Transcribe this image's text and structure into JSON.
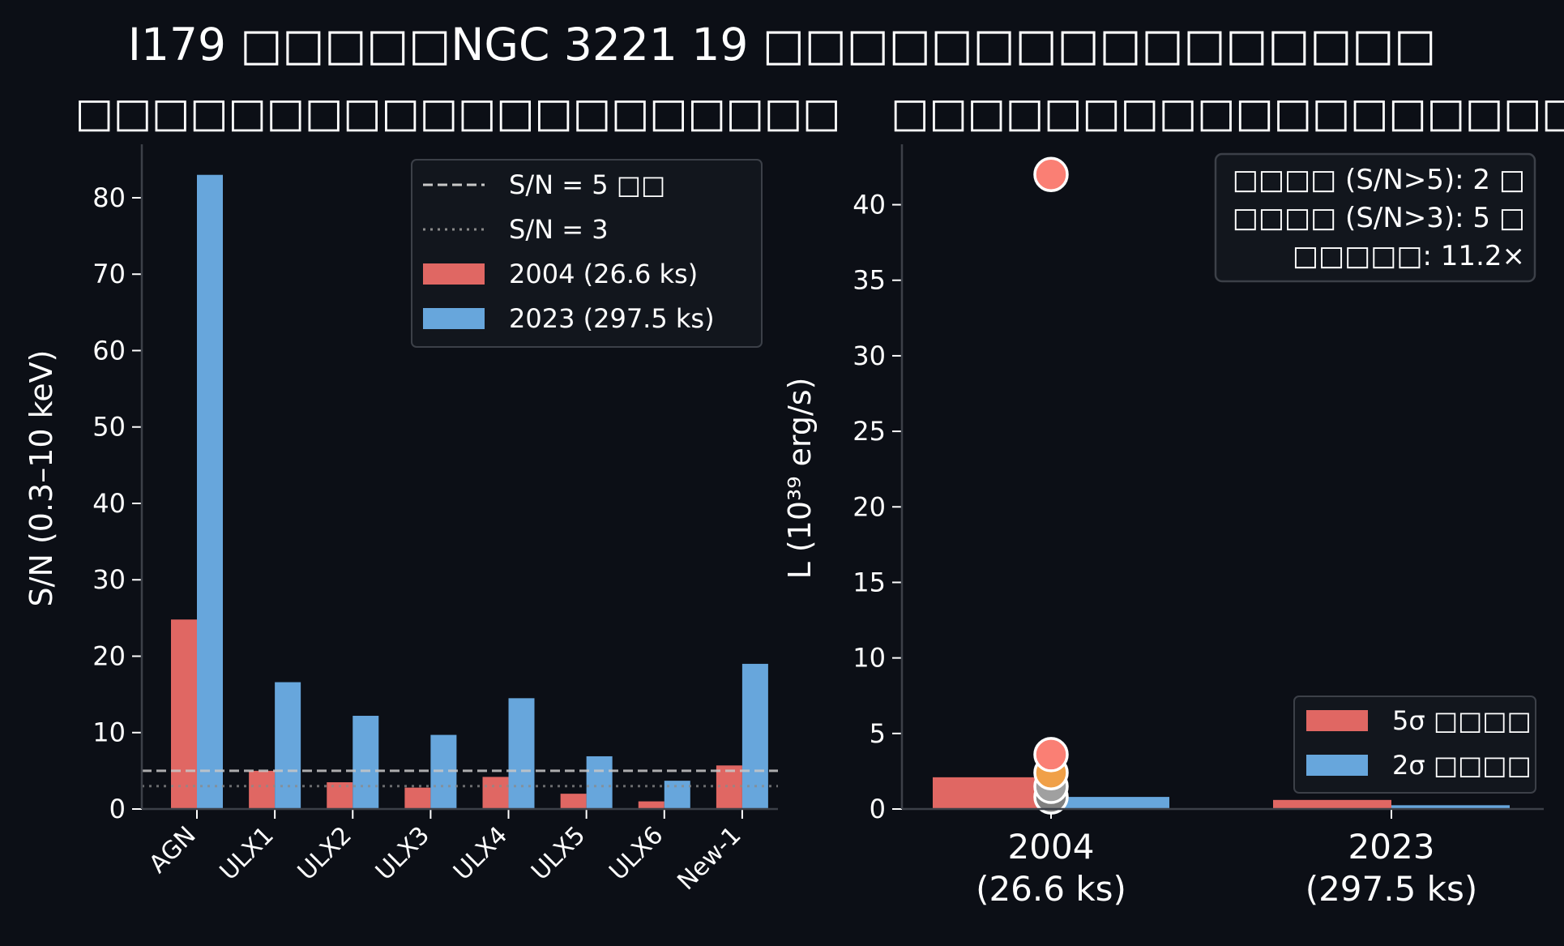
{
  "figure": {
    "title": "I179 □□□□□NGC 3221 19 □□□□□□□□□□□□□□□□",
    "background": "#0c0f16",
    "axis_color": "#3c4048",
    "text_color": "#ffffff"
  },
  "chart_data": [
    {
      "type": "bar",
      "title": "□□□□□□□□□□□□□□□□□□□□",
      "xlabel": "",
      "ylabel": "S/N (0.3–10 keV)",
      "categories": [
        "AGN",
        "ULX1",
        "ULX2",
        "ULX3",
        "ULX4",
        "ULX5",
        "ULX6",
        "New-1"
      ],
      "series": [
        {
          "name": "2004 (26.6 ks)",
          "color": "#e06763",
          "values": [
            24.8,
            5.0,
            3.5,
            2.8,
            4.2,
            2.0,
            1.0,
            5.7
          ]
        },
        {
          "name": "2023 (297.5 ks)",
          "color": "#67a6dc",
          "values": [
            83.0,
            16.6,
            12.2,
            9.7,
            14.5,
            6.9,
            3.7,
            19.0
          ]
        }
      ],
      "reference_lines": [
        {
          "name": "S/N = 5 □□",
          "value": 5,
          "style": "dashed",
          "color": "#c8c8c8"
        },
        {
          "name": "S/N = 3",
          "value": 3,
          "style": "dotted",
          "color": "#8a8a8a"
        }
      ],
      "ylim": [
        0,
        87
      ],
      "yticks": [
        0,
        10,
        20,
        30,
        40,
        50,
        60,
        70,
        80
      ],
      "legend_position": "top-right",
      "grid": false
    },
    {
      "type": "bar",
      "title": "□□□□□□□□□□□□□□□□□□□",
      "xlabel": "",
      "ylabel": "L (10³⁹ erg/s)",
      "categories": [
        {
          "line1": "2004",
          "line2": "(26.6 ks)"
        },
        {
          "line1": "2023",
          "line2": "(297.5 ks)"
        }
      ],
      "series": [
        {
          "name": "5σ □□□□",
          "color": "#e06763",
          "values": [
            2.1,
            0.6
          ]
        },
        {
          "name": "2σ □□□□",
          "color": "#67a6dc",
          "values": [
            0.8,
            0.25
          ]
        }
      ],
      "points": [
        {
          "category": "2004",
          "value": 42.0,
          "color": "#fa7f74"
        },
        {
          "category": "2004",
          "value": 3.6,
          "color": "#fa7f74"
        },
        {
          "category": "2004",
          "value": 2.4,
          "color": "#f0a048"
        },
        {
          "category": "2004",
          "value": 1.5,
          "color": "#a0a0a0"
        },
        {
          "category": "2004",
          "value": 0.8,
          "color": "#808080"
        }
      ],
      "ylim": [
        0,
        44
      ],
      "yticks": [
        0,
        5,
        10,
        15,
        20,
        25,
        30,
        35,
        40
      ],
      "info_box": [
        "□□□□ (S/N>5): 2 □",
        "□□□□ (S/N>3): 5 □",
        "□□□□□: 11.2×"
      ],
      "legend_position": "bottom-right",
      "grid": false
    }
  ]
}
